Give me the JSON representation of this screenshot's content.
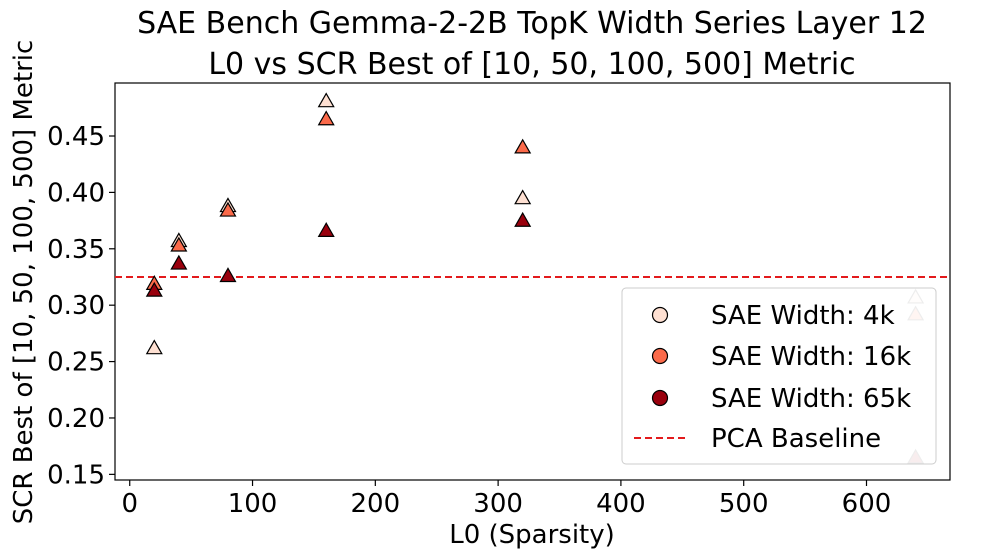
{
  "chart_data": {
    "type": "scatter",
    "title": "SAE Bench Gemma-2-2B TopK Width Series Layer 12",
    "subtitle": "L0 vs SCR Best of [10, 50, 100, 500] Metric",
    "xlabel": "L0 (Sparsity)",
    "ylabel": "SCR Best of [10, 50, 100, 500] Metric",
    "xlim": [
      -12,
      668
    ],
    "ylim": [
      0.145,
      0.497
    ],
    "x_ticks": [
      0,
      100,
      200,
      300,
      400,
      500,
      600
    ],
    "y_ticks": [
      0.15,
      0.2,
      0.25,
      0.3,
      0.35,
      0.4,
      0.45
    ],
    "grid": false,
    "marker": "triangle-up",
    "legend_position": "lower-right",
    "series": [
      {
        "name": "SAE Width: 4k",
        "color": "#fee0d2",
        "points": [
          {
            "x": 20,
            "y": 0.262
          },
          {
            "x": 40,
            "y": 0.357
          },
          {
            "x": 80,
            "y": 0.388
          },
          {
            "x": 160,
            "y": 0.481
          },
          {
            "x": 320,
            "y": 0.395
          },
          {
            "x": 640,
            "y": 0.307,
            "faded": true
          }
        ]
      },
      {
        "name": "SAE Width: 16k",
        "color": "#fb6a4a",
        "points": [
          {
            "x": 20,
            "y": 0.319
          },
          {
            "x": 40,
            "y": 0.353
          },
          {
            "x": 80,
            "y": 0.384
          },
          {
            "x": 160,
            "y": 0.465
          },
          {
            "x": 320,
            "y": 0.44
          },
          {
            "x": 640,
            "y": 0.292,
            "faded": true
          }
        ]
      },
      {
        "name": "SAE Width: 65k",
        "color": "#99000d",
        "points": [
          {
            "x": 20,
            "y": 0.313
          },
          {
            "x": 40,
            "y": 0.337
          },
          {
            "x": 80,
            "y": 0.326
          },
          {
            "x": 160,
            "y": 0.366
          },
          {
            "x": 320,
            "y": 0.375
          },
          {
            "x": 640,
            "y": 0.165,
            "faded": true
          }
        ]
      }
    ],
    "baseline": {
      "name": "PCA Baseline",
      "y": 0.325,
      "color": "#e31a1c",
      "style": "dashed"
    }
  }
}
